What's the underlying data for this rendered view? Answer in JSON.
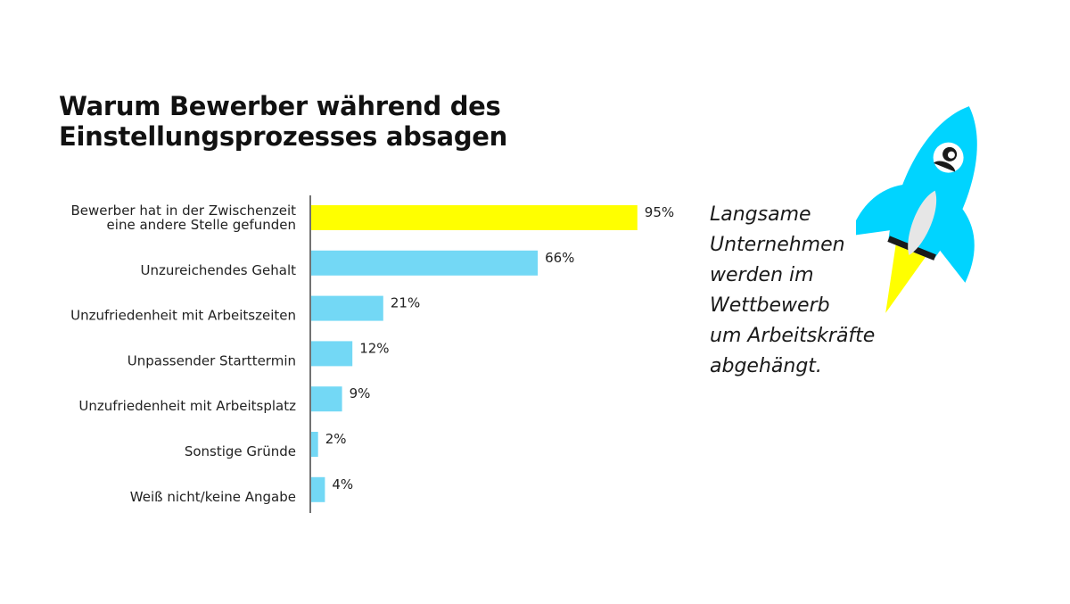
{
  "chart_data": {
    "type": "bar",
    "orientation": "horizontal",
    "title_lines": [
      "Warum Bewerber während des",
      "Einstellungsprozesses absagen"
    ],
    "categories": [
      [
        "Bewerber hat in der Zwischenzeit",
        "eine andere Stelle gefunden"
      ],
      [
        "Unzureichendes Gehalt"
      ],
      [
        "Unzufriedenheit mit Arbeitszeiten"
      ],
      [
        "Unpassender Starttermin"
      ],
      [
        "Unzufriedenheit mit Arbeitsplatz"
      ],
      [
        "Sonstige Gründe"
      ],
      [
        "Weiß nicht/keine Angabe"
      ]
    ],
    "values": [
      95,
      66,
      21,
      12,
      9,
      2,
      4
    ],
    "value_labels": [
      "95%",
      "66%",
      "21%",
      "12%",
      "9%",
      "2%",
      "4%"
    ],
    "unit": "%",
    "xlim": [
      0,
      100
    ],
    "grid": false,
    "colors": {
      "highlight": "#ffff00",
      "bar": "#73d8f5",
      "axis": "#444444"
    },
    "highlight_index": 0
  },
  "side_text_lines": [
    "Langsame",
    "Unternehmen",
    "werden im",
    "Wettbewerb",
    "um Arbeitskräfte",
    "abgehängt."
  ],
  "illustration": {
    "icon": "rocket-icon",
    "colors": {
      "body": "#00d4ff",
      "window": "#ffffff",
      "fin": "#e6e6e6",
      "flame": "#ffff00",
      "dark": "#1a1a1a"
    }
  }
}
